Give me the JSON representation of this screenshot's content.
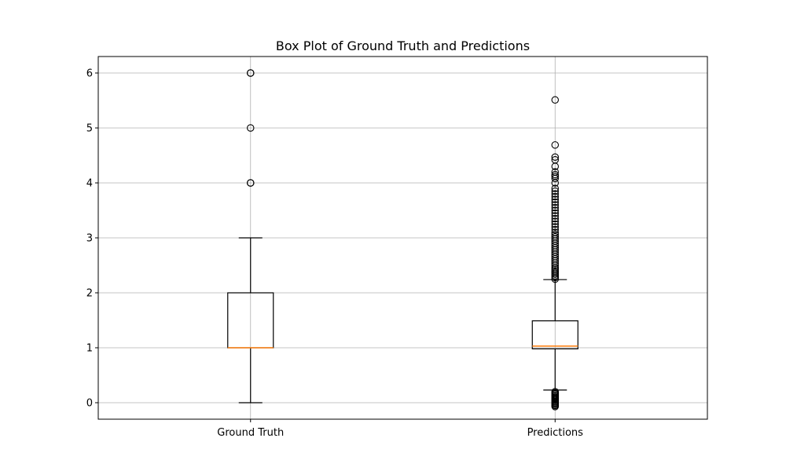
{
  "chart_data": {
    "type": "box",
    "title": "Box Plot of Ground Truth and Predictions",
    "xlabel": "",
    "ylabel": "",
    "categories": [
      "Ground Truth",
      "Predictions"
    ],
    "ylim": [
      -0.3,
      6.3
    ],
    "yticks": [
      0,
      1,
      2,
      3,
      4,
      5,
      6
    ],
    "grid": true,
    "legend": "none",
    "colors": {
      "box": "#000000",
      "median": "#ff7f0e",
      "grid": "#b0b0b0",
      "axis": "#000000"
    },
    "series": [
      {
        "whisker_low": 0,
        "q1": 1,
        "median": 1,
        "q3": 2,
        "whisker_high": 3,
        "outliers": [
          4,
          4,
          5,
          6,
          6
        ]
      },
      {
        "whisker_low": 0.23,
        "q1": 0.98,
        "median": 1.03,
        "q3": 1.49,
        "whisker_high": 2.24,
        "outliers": [
          -0.07,
          -0.05,
          -0.03,
          -0.01,
          0.0,
          0.02,
          0.04,
          0.06,
          0.08,
          0.1,
          0.12,
          0.14,
          0.16,
          0.18,
          0.2,
          2.25,
          2.28,
          2.31,
          2.34,
          2.37,
          2.4,
          2.43,
          2.46,
          2.5,
          2.54,
          2.58,
          2.62,
          2.66,
          2.7,
          2.74,
          2.78,
          2.82,
          2.86,
          2.9,
          2.94,
          2.98,
          3.02,
          3.06,
          3.1,
          3.15,
          3.2,
          3.25,
          3.3,
          3.35,
          3.4,
          3.45,
          3.5,
          3.55,
          3.6,
          3.65,
          3.7,
          3.75,
          3.8,
          3.85,
          3.9,
          4.0,
          4.08,
          4.12,
          4.15,
          4.2,
          4.3,
          4.42,
          4.47,
          4.69,
          5.51
        ]
      }
    ]
  }
}
